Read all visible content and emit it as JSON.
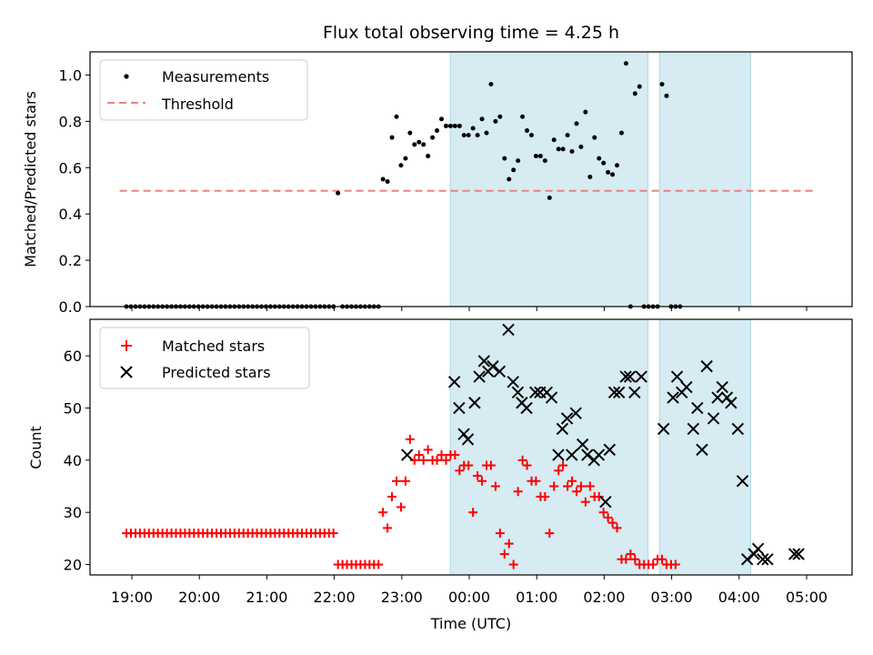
{
  "chart_data": [
    {
      "type": "scatter",
      "title": "Flux total observing time = 4.25 h",
      "xlabel": "",
      "ylabel": "Matched/Predicted stars",
      "xlim": [
        18.9,
        5.7
      ],
      "ylim": [
        0.0,
        1.1
      ],
      "yticks": [
        "0.0",
        "0.2",
        "0.4",
        "0.6",
        "0.8",
        "1.0"
      ],
      "shaded_intervals": [
        [
          23.72,
          2.65
        ],
        [
          2.82,
          4.17
        ]
      ],
      "legend": [
        "Measurements",
        "Threshold"
      ],
      "threshold": {
        "name": "Threshold",
        "value": 0.5,
        "x_range": [
          18.9,
          5.1
        ],
        "color": "#f08080"
      },
      "series": [
        {
          "name": "Measurements",
          "color": "#000000",
          "x_start": 18.92,
          "x_step": 0.0667,
          "values": [
            0,
            0,
            0,
            0,
            0,
            0,
            0,
            0,
            0,
            0,
            0,
            0,
            0,
            0,
            0,
            0,
            0,
            0,
            0,
            0,
            0,
            0,
            0,
            0,
            0,
            0,
            0,
            0,
            0,
            0,
            0,
            0,
            0,
            0,
            0,
            0,
            0,
            0,
            0,
            0,
            0,
            0,
            0,
            0,
            0,
            0,
            0,
            0.49,
            0,
            0,
            0,
            0,
            0,
            0,
            0,
            0,
            0,
            0.55,
            0.54,
            0.73,
            0.82,
            0.61,
            0.64,
            0.75,
            0.7,
            0.71,
            0.7,
            0.65,
            0.73,
            0.76,
            0.81,
            0.78,
            0.78,
            0.78,
            0.78,
            0.74,
            0.74,
            0.77,
            0.74,
            0.81,
            0.75,
            0.96,
            0.8,
            0.82,
            0.64,
            0.55,
            0.59,
            0.63,
            0.82,
            0.76,
            0.74,
            0.65,
            0.65,
            0.63,
            0.47,
            0.72,
            0.68,
            0.68,
            0.74,
            0.67,
            0.79,
            0.69,
            0.84,
            0.56,
            0.73,
            0.64,
            0.62,
            0.58,
            0.57,
            0.61,
            0.75,
            1.05,
            0,
            0.92,
            0.95,
            0,
            0,
            0,
            0,
            0.96,
            0.91,
            0,
            0,
            0
          ]
        }
      ]
    },
    {
      "type": "scatter",
      "title": "",
      "xlabel": "Time (UTC)",
      "ylabel": "Count",
      "xlim": [
        18.9,
        5.7
      ],
      "ylim": [
        18,
        67
      ],
      "xticks": [
        "19:00",
        "20:00",
        "21:00",
        "22:00",
        "23:00",
        "00:00",
        "01:00",
        "02:00",
        "03:00",
        "04:00",
        "05:00"
      ],
      "yticks": [
        "20",
        "30",
        "40",
        "50",
        "60"
      ],
      "shaded_intervals": [
        [
          23.72,
          2.65
        ],
        [
          2.82,
          4.17
        ]
      ],
      "legend": [
        "Matched stars",
        "Predicted stars"
      ],
      "series": [
        {
          "name": "Matched stars",
          "marker": "plus",
          "color": "#ff0000",
          "x_start": 18.92,
          "x_step": 0.0667,
          "values": [
            26,
            26,
            26,
            26,
            26,
            26,
            26,
            26,
            26,
            26,
            26,
            26,
            26,
            26,
            26,
            26,
            26,
            26,
            26,
            26,
            26,
            26,
            26,
            26,
            26,
            26,
            26,
            26,
            26,
            26,
            26,
            26,
            26,
            26,
            26,
            26,
            26,
            26,
            26,
            26,
            26,
            26,
            26,
            26,
            26,
            26,
            26,
            20,
            20,
            20,
            20,
            20,
            20,
            20,
            20,
            20,
            20,
            30,
            27,
            33,
            36,
            31,
            36,
            44,
            40,
            41,
            40,
            42,
            40,
            40,
            41,
            40,
            41,
            41,
            38,
            39,
            39,
            30,
            37,
            36,
            39,
            39,
            35,
            26,
            22,
            24,
            20,
            34,
            40,
            39,
            36,
            36,
            33,
            33,
            26,
            35,
            38,
            39,
            35,
            36,
            34,
            35,
            32,
            35,
            33,
            33,
            30,
            29,
            28,
            27,
            21,
            21,
            22,
            21,
            20,
            20,
            20,
            20,
            21,
            21,
            20,
            20,
            20
          ]
        },
        {
          "name": "Predicted stars",
          "marker": "x",
          "color": "#000000",
          "points": [
            [
              23.08,
              41
            ],
            [
              23.78,
              55
            ],
            [
              23.85,
              50
            ],
            [
              23.92,
              45
            ],
            [
              23.98,
              44
            ],
            [
              24.08,
              51
            ],
            [
              24.15,
              56
            ],
            [
              24.22,
              59
            ],
            [
              24.28,
              57
            ],
            [
              24.35,
              58
            ],
            [
              24.45,
              57
            ],
            [
              24.58,
              65
            ],
            [
              24.65,
              55
            ],
            [
              24.72,
              53
            ],
            [
              24.78,
              51
            ],
            [
              24.85,
              50
            ],
            [
              24.98,
              53
            ],
            [
              25.05,
              53
            ],
            [
              25.15,
              53
            ],
            [
              25.22,
              52
            ],
            [
              25.32,
              41
            ],
            [
              25.38,
              46
            ],
            [
              25.45,
              48
            ],
            [
              25.52,
              41
            ],
            [
              25.58,
              49
            ],
            [
              25.68,
              43
            ],
            [
              25.75,
              41
            ],
            [
              25.85,
              40
            ],
            [
              25.92,
              41
            ],
            [
              26.02,
              32
            ],
            [
              26.08,
              42
            ],
            [
              26.15,
              53
            ],
            [
              26.22,
              53
            ],
            [
              26.32,
              56
            ],
            [
              26.38,
              56
            ],
            [
              26.45,
              53
            ],
            [
              26.55,
              56
            ],
            [
              26.88,
              46
            ],
            [
              27.02,
              52
            ],
            [
              27.08,
              56
            ],
            [
              27.15,
              53
            ],
            [
              27.22,
              54
            ],
            [
              27.32,
              46
            ],
            [
              27.38,
              50
            ],
            [
              27.45,
              42
            ],
            [
              27.52,
              58
            ],
            [
              27.62,
              48
            ],
            [
              27.68,
              52
            ],
            [
              27.75,
              54
            ],
            [
              27.82,
              52
            ],
            [
              27.88,
              51
            ],
            [
              27.98,
              46
            ],
            [
              28.05,
              36
            ],
            [
              28.12,
              21
            ],
            [
              28.22,
              22
            ],
            [
              28.28,
              23
            ],
            [
              28.35,
              21
            ],
            [
              28.42,
              21
            ],
            [
              28.82,
              22
            ],
            [
              28.88,
              22
            ]
          ]
        }
      ]
    }
  ]
}
